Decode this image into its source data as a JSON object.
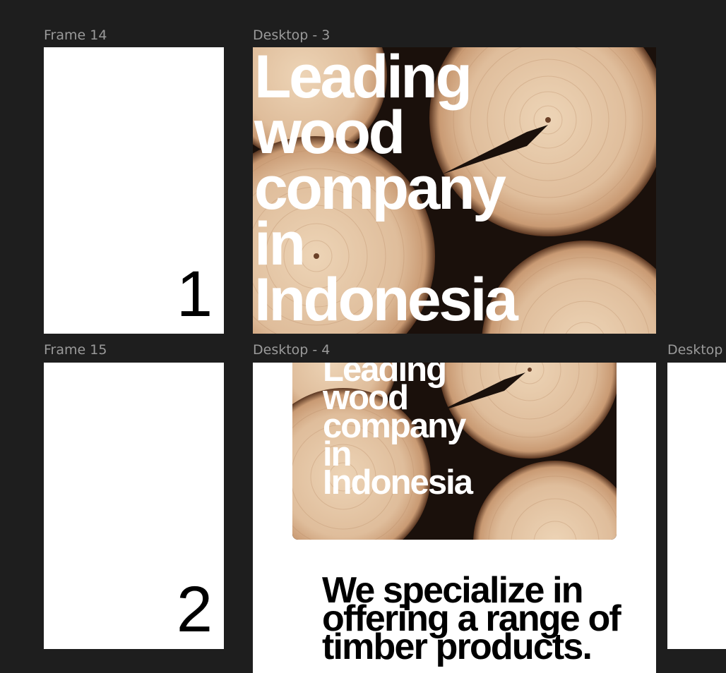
{
  "canvas": {
    "background": "#1e1e1e"
  },
  "frames": {
    "frame14": {
      "label": "Frame 14",
      "number": "1"
    },
    "frame15": {
      "label": "Frame 15",
      "number": "2"
    },
    "desktop3": {
      "label": "Desktop - 3",
      "headline_lines": [
        "Leading",
        "wood",
        "company",
        "in",
        "Indonesia"
      ],
      "image": "wood-log-cross-sections"
    },
    "desktop4": {
      "label": "Desktop - 4",
      "headline_lines": [
        "Leading",
        "wood",
        "company",
        "in",
        "Indonesia"
      ],
      "tagline_lines": [
        "We specialize in",
        "offering a range of",
        "timber products."
      ],
      "image": "wood-log-cross-sections"
    },
    "desktop5": {
      "label": "Desktop"
    }
  },
  "colors": {
    "label": "#9a9a9a",
    "frame": "#ffffff",
    "wood_light": "#e2c3a3",
    "wood_dark": "#1a100b"
  }
}
